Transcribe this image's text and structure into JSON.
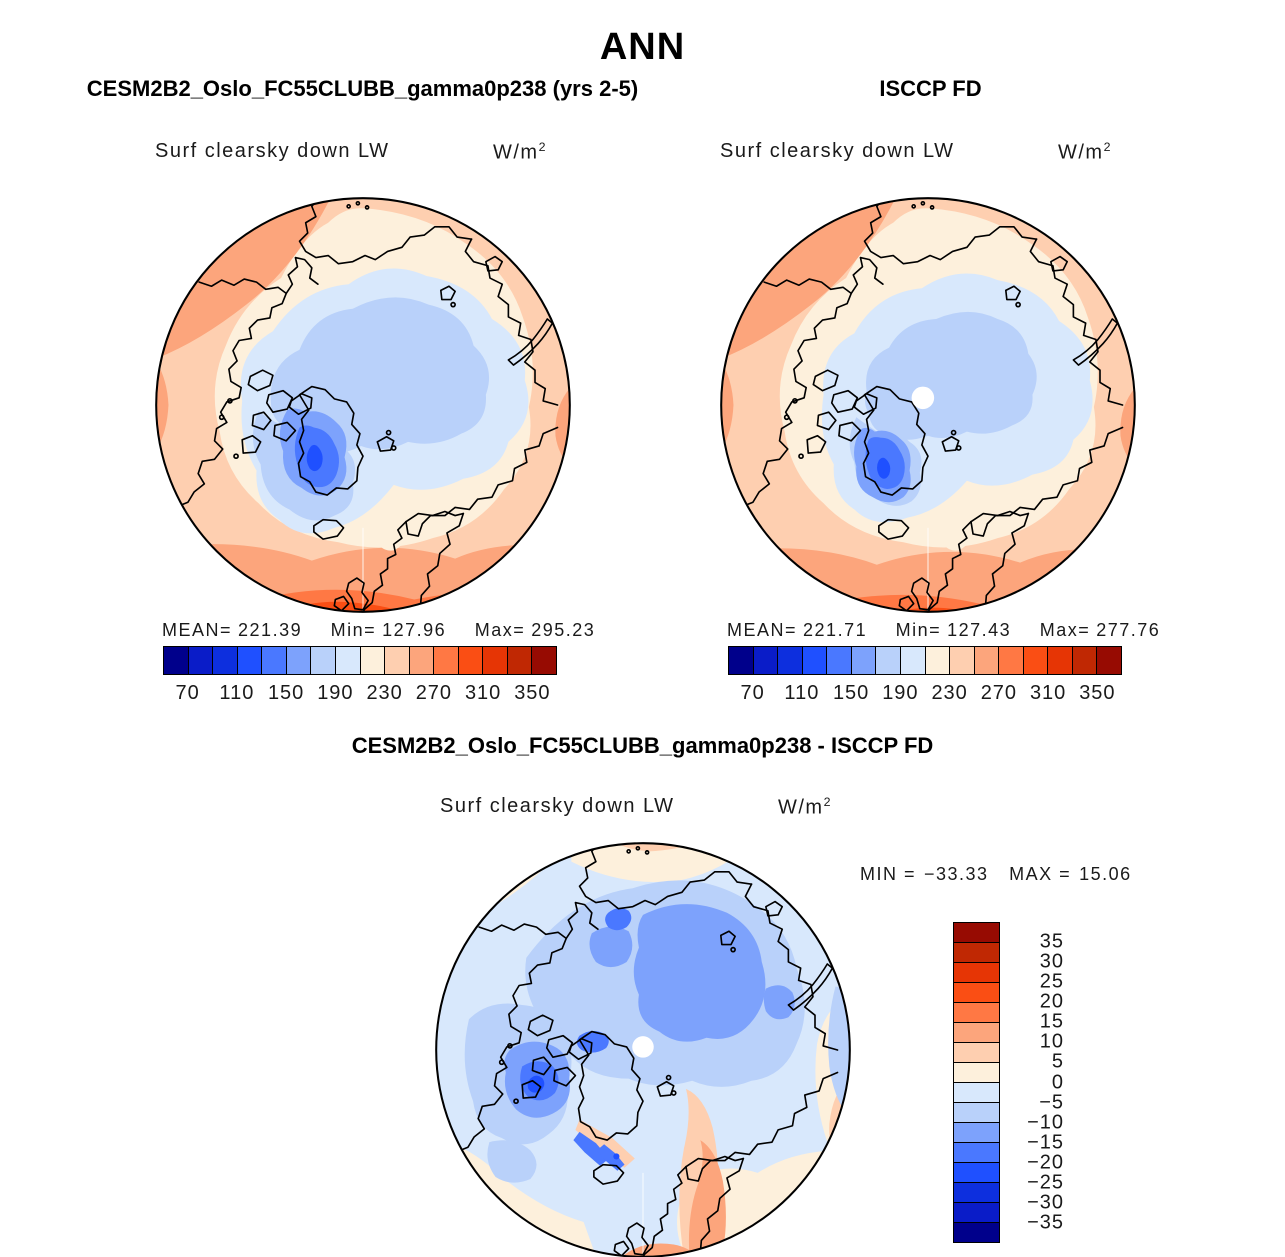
{
  "page": {
    "season_title": "ANN"
  },
  "panels": {
    "model": {
      "title": "CESM2B2_Oslo_FC55CLUBB_gamma0p238 (yrs 2-5)",
      "field_label": "Surf clearsky down LW",
      "units_base": "W/m",
      "units_exp": "2",
      "stats": {
        "mean_label": "MEAN=",
        "mean": "221.39",
        "min_label": "Min=",
        "min": "127.96",
        "max_label": "Max=",
        "max": "295.23"
      },
      "colorbar": {
        "colors": [
          "#00008B",
          "#0A1CC8",
          "#0D2FDE",
          "#1F50FF",
          "#4A78FF",
          "#7DA2FC",
          "#B9D1FA",
          "#D8E8FC",
          "#FDF0DC",
          "#FECFB0",
          "#FCA57C",
          "#FF7844",
          "#FA4E14",
          "#E63505",
          "#C02803",
          "#970B02"
        ],
        "ticks": {
          "segments": 16,
          "orient": "h",
          "items": [
            {
              "label": "70",
              "pos": 1
            },
            {
              "label": "110",
              "pos": 3
            },
            {
              "label": "150",
              "pos": 5
            },
            {
              "label": "190",
              "pos": 7
            },
            {
              "label": "230",
              "pos": 9
            },
            {
              "label": "270",
              "pos": 11
            },
            {
              "label": "310",
              "pos": 13
            },
            {
              "label": "350",
              "pos": 15
            }
          ]
        }
      }
    },
    "obs": {
      "title": "ISCCP FD",
      "field_label": "Surf clearsky down LW",
      "units_base": "W/m",
      "units_exp": "2",
      "stats": {
        "mean_label": "MEAN=",
        "mean": "221.71",
        "min_label": "Min=",
        "min": "127.43",
        "max_label": "Max=",
        "max": "277.76"
      },
      "colorbar": {
        "colors": [
          "#00008B",
          "#0A1CC8",
          "#0D2FDE",
          "#1F50FF",
          "#4A78FF",
          "#7DA2FC",
          "#B9D1FA",
          "#D8E8FC",
          "#FDF0DC",
          "#FECFB0",
          "#FCA57C",
          "#FF7844",
          "#FA4E14",
          "#E63505",
          "#C02803",
          "#970B02"
        ],
        "ticks": {
          "segments": 16,
          "orient": "h",
          "items": [
            {
              "label": "70",
              "pos": 1
            },
            {
              "label": "110",
              "pos": 3
            },
            {
              "label": "150",
              "pos": 5
            },
            {
              "label": "190",
              "pos": 7
            },
            {
              "label": "230",
              "pos": 9
            },
            {
              "label": "270",
              "pos": 11
            },
            {
              "label": "310",
              "pos": 13
            },
            {
              "label": "350",
              "pos": 15
            }
          ]
        }
      }
    },
    "diff": {
      "title": "CESM2B2_Oslo_FC55CLUBB_gamma0p238 - ISCCP FD",
      "field_label": "Surf clearsky down LW",
      "units_base": "W/m",
      "units_exp": "2",
      "stats": {
        "min_label": "MIN =",
        "min": "−33.33",
        "max_label": "MAX =",
        "max": "15.06"
      },
      "colorbar": {
        "colors": [
          "#970B02",
          "#C02803",
          "#E63505",
          "#FA4E14",
          "#FF7844",
          "#FCA57C",
          "#FECFB0",
          "#FDF0DC",
          "#D8E8FC",
          "#B9D1FA",
          "#7DA2FC",
          "#4A78FF",
          "#1F50FF",
          "#0D2FDE",
          "#0A1CC8",
          "#00008B"
        ],
        "ticks": {
          "segments": 16,
          "orient": "v",
          "items": [
            {
              "label": "35",
              "pos": 1
            },
            {
              "label": "30",
              "pos": 2
            },
            {
              "label": "25",
              "pos": 3
            },
            {
              "label": "20",
              "pos": 4
            },
            {
              "label": "15",
              "pos": 5
            },
            {
              "label": "10",
              "pos": 6
            },
            {
              "label": "5",
              "pos": 7
            },
            {
              "label": "0",
              "pos": 8
            },
            {
              "label": "−5",
              "pos": 9
            },
            {
              "label": "−10",
              "pos": 10
            },
            {
              "label": "−15",
              "pos": 11
            },
            {
              "label": "−20",
              "pos": 12
            },
            {
              "label": "−25",
              "pos": 13
            },
            {
              "label": "−30",
              "pos": 14
            },
            {
              "label": "−35",
              "pos": 15
            }
          ]
        }
      }
    }
  },
  "chart_data": {
    "type": "heatmap",
    "subtype": "north-polar-stereographic-contour-maps",
    "season": "ANN",
    "variable": "Surf clearsky down LW",
    "units": "W/m^2",
    "panels": [
      {
        "name": "CESM2B2_Oslo_FC55CLUBB_gamma0p238 (yrs 2-5)",
        "mean": 221.39,
        "min": 127.96,
        "max": 295.23,
        "colorbar_tick_values": [
          70,
          110,
          150,
          190,
          230,
          270,
          310,
          350
        ],
        "colorbar_value_range": [
          50,
          370
        ],
        "colorbar_step": 20
      },
      {
        "name": "ISCCP FD",
        "mean": 221.71,
        "min": 127.43,
        "max": 277.76,
        "colorbar_tick_values": [
          70,
          110,
          150,
          190,
          230,
          270,
          310,
          350
        ],
        "colorbar_value_range": [
          50,
          370
        ],
        "colorbar_step": 20
      },
      {
        "name": "CESM2B2_Oslo_FC55CLUBB_gamma0p238 - ISCCP FD",
        "min": -33.33,
        "max": 15.06,
        "colorbar_tick_values": [
          35,
          30,
          25,
          20,
          15,
          10,
          5,
          0,
          -5,
          -10,
          -15,
          -20,
          -25,
          -30,
          -35
        ],
        "colorbar_value_range": [
          -40,
          40
        ],
        "colorbar_step": 5
      }
    ],
    "legend_position": "below-each-top-panel; vertical-right-for-difference-panel",
    "palette_low_to_high": [
      "#00008B",
      "#0A1CC8",
      "#0D2FDE",
      "#1F50FF",
      "#4A78FF",
      "#7DA2FC",
      "#B9D1FA",
      "#D8E8FC",
      "#FDF0DC",
      "#FECFB0",
      "#FCA57C",
      "#FF7844",
      "#FA4E14",
      "#E63505",
      "#C02803",
      "#970B02"
    ]
  }
}
